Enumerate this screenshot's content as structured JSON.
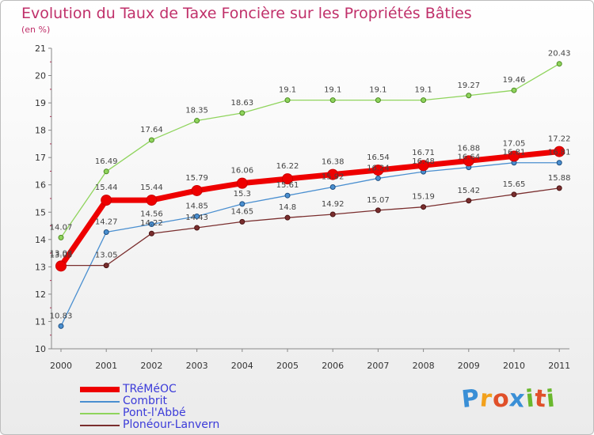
{
  "header": {
    "title": "Evolution du Taux de Taxe Foncière sur les Propriétés Bâties",
    "unit": "(en %)"
  },
  "logo": {
    "text": "Proxiti",
    "letters": [
      "P",
      "r",
      "o",
      "x",
      "i",
      "t",
      "i"
    ],
    "colors": [
      "#3a8fd6",
      "#f2a11c",
      "#e0502a",
      "#3a8fd6",
      "#6ab82d",
      "#e0502a",
      "#6ab82d"
    ]
  },
  "chart_data": {
    "type": "line",
    "title": "Evolution du Taux de Taxe Foncière sur les Propriétés Bâties",
    "ylabel": "(en %)",
    "x": [
      "2000",
      "2001",
      "2002",
      "2003",
      "2004",
      "2005",
      "2006",
      "2007",
      "2008",
      "2009",
      "2010",
      "2011"
    ],
    "ylim": [
      10,
      21
    ],
    "yticks": [
      "10",
      "11",
      "12",
      "13",
      "14",
      "15",
      "16",
      "17",
      "18",
      "19",
      "20",
      "21"
    ],
    "grid": false,
    "legend": "bottom-left",
    "series": [
      {
        "name": "TRéMéOC",
        "color": "#ee0000",
        "values": [
          13.03,
          15.44,
          15.44,
          15.79,
          16.06,
          16.22,
          16.38,
          16.54,
          16.71,
          16.88,
          17.05,
          17.22
        ],
        "labels": [
          "13.03",
          "15.44",
          "15.44",
          "15.79",
          "16.06",
          "16.22",
          "16.38",
          "16.54",
          "16.71",
          "16.88",
          "17.05",
          "17.22"
        ]
      },
      {
        "name": "Combrit",
        "color": "#4a8fd0",
        "values": [
          10.83,
          14.27,
          14.56,
          14.85,
          15.3,
          15.61,
          15.92,
          16.24,
          16.48,
          16.64,
          16.81,
          16.81
        ],
        "labels": [
          "10.83",
          "14.27",
          "14.56",
          "14.85",
          "15.3",
          "15.61",
          "15.92",
          "16.24",
          "16.48",
          "16.64",
          "16.81",
          "16.81"
        ]
      },
      {
        "name": "Pont-l'Abbé",
        "color": "#8fd45c",
        "values": [
          14.07,
          16.49,
          17.64,
          18.35,
          18.63,
          19.1,
          19.1,
          19.1,
          19.1,
          19.27,
          19.46,
          20.43
        ],
        "labels": [
          "14.07",
          "16.49",
          "17.64",
          "18.35",
          "18.63",
          "19.1",
          "19.1",
          "19.1",
          "19.1",
          "19.27",
          "19.46",
          "20.43"
        ]
      },
      {
        "name": "Plonéour-Lanvern",
        "color": "#7a2e2e",
        "values": [
          13.05,
          13.05,
          14.22,
          14.43,
          14.65,
          14.8,
          14.92,
          15.07,
          15.19,
          15.42,
          15.65,
          15.88
        ],
        "labels": [
          "13.05",
          "13.05",
          "14.22",
          "14.43",
          "14.65",
          "14.8",
          "14.92",
          "15.07",
          "15.19",
          "15.42",
          "15.65",
          "15.88"
        ]
      }
    ]
  }
}
